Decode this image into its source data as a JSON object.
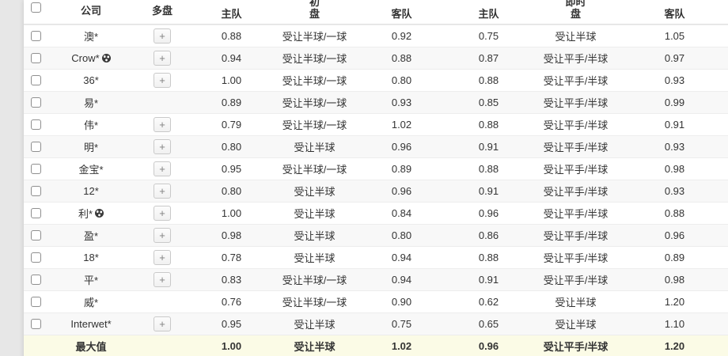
{
  "page": {
    "background_color": "#e7e7e7",
    "stripe_row_color": "#f8f8f8",
    "summary_row_color": "#fbfbe6",
    "text_color": "#333333"
  },
  "header": {
    "group_initial": "初",
    "group_live": "即时",
    "company": "公司",
    "multi": "多盘",
    "home": "主队",
    "handicap": "盘",
    "away": "客队"
  },
  "icons": {
    "plus": "+",
    "soccer_ball": "soccer-ball-icon",
    "checkbox": "checkbox-unchecked"
  },
  "table": {
    "rows": [
      {
        "company": "澳*",
        "has_soccer_icon": false,
        "has_multi_button": true,
        "is_summary": false,
        "init_home": "0.88",
        "init_handicap": "受让半球/一球",
        "init_away": "0.92",
        "live_home": "0.75",
        "live_handicap": "受让半球",
        "live_away": "1.05"
      },
      {
        "company": "Crow*",
        "has_soccer_icon": true,
        "has_multi_button": true,
        "is_summary": false,
        "init_home": "0.94",
        "init_handicap": "受让半球/一球",
        "init_away": "0.88",
        "live_home": "0.87",
        "live_handicap": "受让平手/半球",
        "live_away": "0.97"
      },
      {
        "company": "36*",
        "has_soccer_icon": false,
        "has_multi_button": true,
        "is_summary": false,
        "init_home": "1.00",
        "init_handicap": "受让半球/一球",
        "init_away": "0.80",
        "live_home": "0.88",
        "live_handicap": "受让平手/半球",
        "live_away": "0.93"
      },
      {
        "company": "易*",
        "has_soccer_icon": false,
        "has_multi_button": false,
        "is_summary": false,
        "init_home": "0.89",
        "init_handicap": "受让半球/一球",
        "init_away": "0.93",
        "live_home": "0.85",
        "live_handicap": "受让平手/半球",
        "live_away": "0.99"
      },
      {
        "company": "伟*",
        "has_soccer_icon": false,
        "has_multi_button": true,
        "is_summary": false,
        "init_home": "0.79",
        "init_handicap": "受让半球/一球",
        "init_away": "1.02",
        "live_home": "0.88",
        "live_handicap": "受让平手/半球",
        "live_away": "0.91"
      },
      {
        "company": "明*",
        "has_soccer_icon": false,
        "has_multi_button": true,
        "is_summary": false,
        "init_home": "0.80",
        "init_handicap": "受让半球",
        "init_away": "0.96",
        "live_home": "0.91",
        "live_handicap": "受让平手/半球",
        "live_away": "0.93"
      },
      {
        "company": "金宝*",
        "has_soccer_icon": false,
        "has_multi_button": true,
        "is_summary": false,
        "init_home": "0.95",
        "init_handicap": "受让半球/一球",
        "init_away": "0.89",
        "live_home": "0.88",
        "live_handicap": "受让平手/半球",
        "live_away": "0.98"
      },
      {
        "company": "12*",
        "has_soccer_icon": false,
        "has_multi_button": true,
        "is_summary": false,
        "init_home": "0.80",
        "init_handicap": "受让半球",
        "init_away": "0.96",
        "live_home": "0.91",
        "live_handicap": "受让平手/半球",
        "live_away": "0.93"
      },
      {
        "company": "利*",
        "has_soccer_icon": true,
        "has_multi_button": true,
        "is_summary": false,
        "init_home": "1.00",
        "init_handicap": "受让半球",
        "init_away": "0.84",
        "live_home": "0.96",
        "live_handicap": "受让平手/半球",
        "live_away": "0.88"
      },
      {
        "company": "盈*",
        "has_soccer_icon": false,
        "has_multi_button": true,
        "is_summary": false,
        "init_home": "0.98",
        "init_handicap": "受让半球",
        "init_away": "0.80",
        "live_home": "0.86",
        "live_handicap": "受让平手/半球",
        "live_away": "0.96"
      },
      {
        "company": "18*",
        "has_soccer_icon": false,
        "has_multi_button": true,
        "is_summary": false,
        "init_home": "0.78",
        "init_handicap": "受让半球",
        "init_away": "0.94",
        "live_home": "0.88",
        "live_handicap": "受让平手/半球",
        "live_away": "0.89"
      },
      {
        "company": "平*",
        "has_soccer_icon": false,
        "has_multi_button": true,
        "is_summary": false,
        "init_home": "0.83",
        "init_handicap": "受让半球/一球",
        "init_away": "0.94",
        "live_home": "0.91",
        "live_handicap": "受让平手/半球",
        "live_away": "0.98"
      },
      {
        "company": "威*",
        "has_soccer_icon": false,
        "has_multi_button": false,
        "is_summary": false,
        "init_home": "0.76",
        "init_handicap": "受让半球/一球",
        "init_away": "0.90",
        "live_home": "0.62",
        "live_handicap": "受让半球",
        "live_away": "1.20"
      },
      {
        "company": "Interwet*",
        "has_soccer_icon": false,
        "has_multi_button": true,
        "is_summary": false,
        "init_home": "0.95",
        "init_handicap": "受让半球",
        "init_away": "0.75",
        "live_home": "0.65",
        "live_handicap": "受让半球",
        "live_away": "1.10"
      },
      {
        "company": "最大值",
        "has_soccer_icon": false,
        "has_multi_button": false,
        "is_summary": true,
        "init_home": "1.00",
        "init_handicap": "受让半球",
        "init_away": "1.02",
        "live_home": "0.96",
        "live_handicap": "受让平手/半球",
        "live_away": "1.20"
      }
    ]
  }
}
